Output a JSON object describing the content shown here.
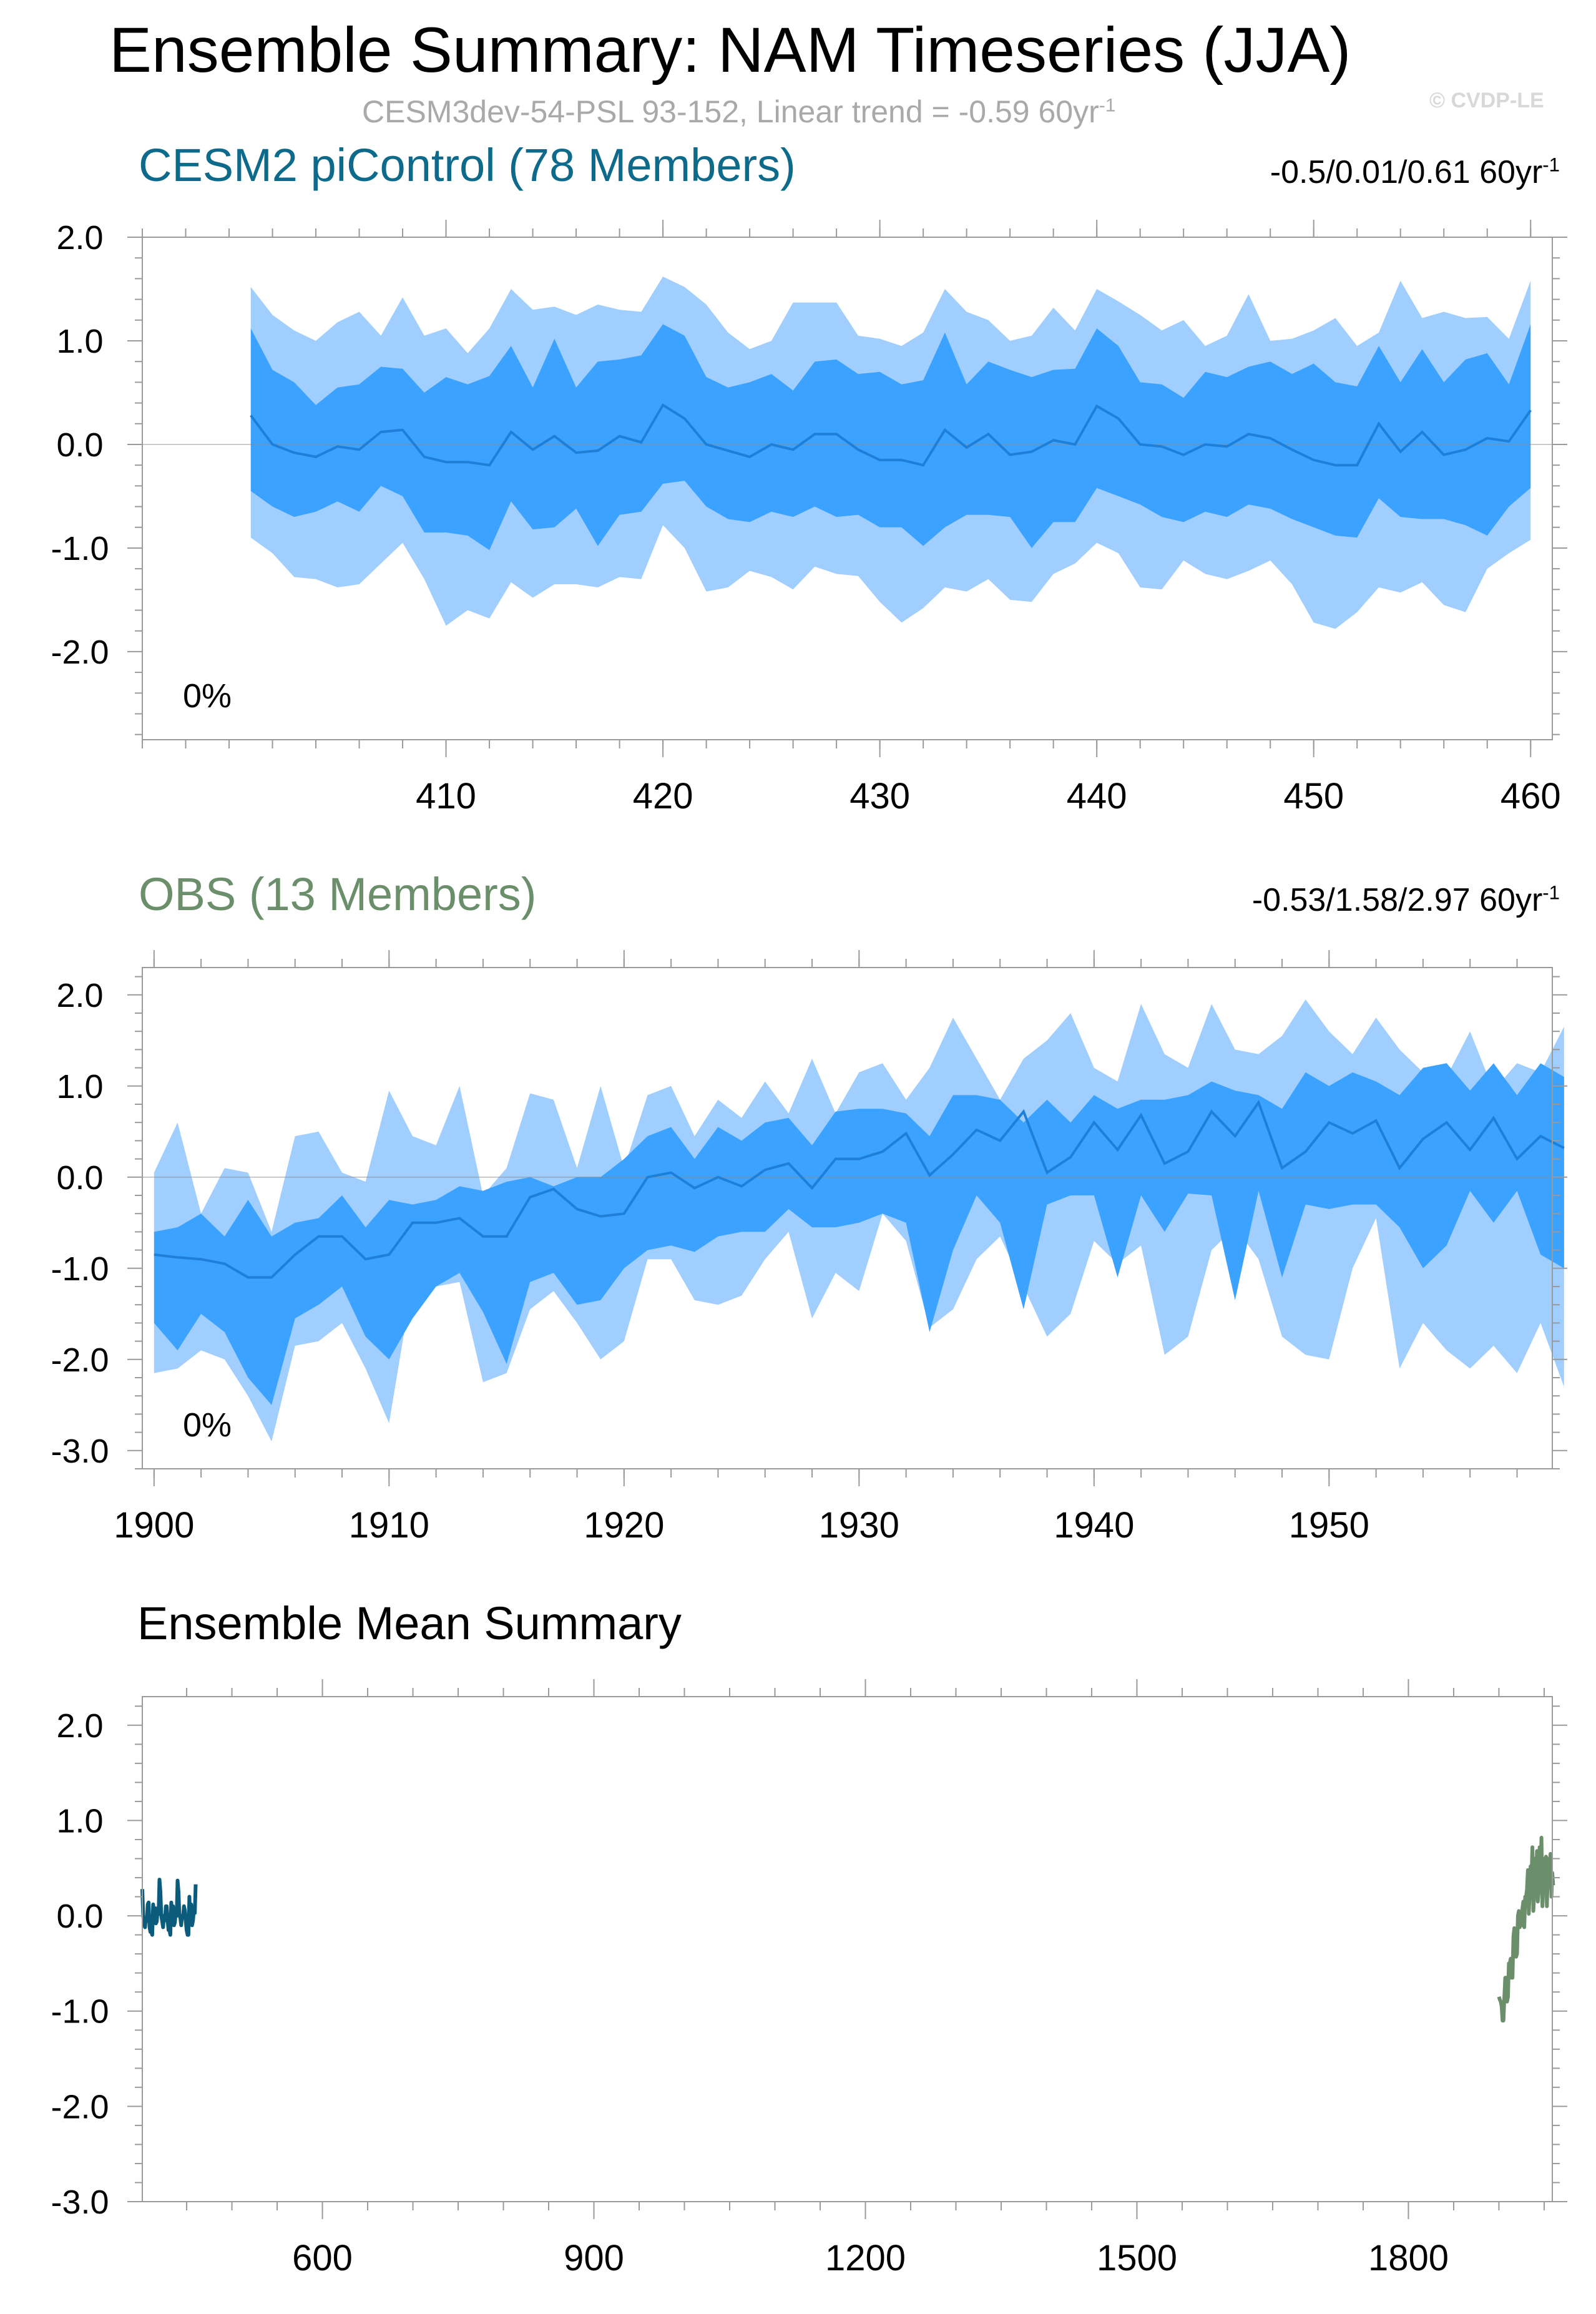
{
  "header": {
    "title": "Ensemble Summary: NAM Timeseries (JJA)",
    "subtitle": "CESM3dev-54-PSL 93-152, Linear trend = -0.59 60yr",
    "subtitle_sup": "-1",
    "watermark": "© CVDP-LE"
  },
  "colors": {
    "light_band": "#9fceff",
    "dark_band": "#3ba2ff",
    "mean_line": "#1d7fd8",
    "cesm_line": "#0b5c7c",
    "obs_line": "#6b8e6b",
    "cesm_title": "#0e6a8a",
    "obs_title": "#6b8e6b"
  },
  "chart_data": [
    {
      "type": "area",
      "title": "CESM2 piControl (78 Members)",
      "trend_label": "-0.5/0.01/0.61 60yr",
      "trend_sup": "-1",
      "annotation": "0%",
      "x_start": 401,
      "xlim": [
        396,
        461
      ],
      "ylim": [
        -2.85,
        2.0
      ],
      "yticks": [
        "2.0",
        "1.0",
        "0.0",
        "-1.0",
        "-2.0"
      ],
      "ytick_values": [
        2.0,
        1.0,
        0.0,
        -1.0,
        -2.0
      ],
      "xticks": [
        "410",
        "420",
        "430",
        "440",
        "450",
        "460"
      ],
      "xtick_values": [
        410,
        420,
        430,
        440,
        450,
        460
      ],
      "series": [
        {
          "name": "mean",
          "values": [
            0.28,
            0.0,
            -0.08,
            -0.12,
            -0.02,
            -0.05,
            0.12,
            0.14,
            -0.12,
            -0.17,
            -0.17,
            -0.2,
            0.12,
            -0.05,
            0.08,
            -0.08,
            -0.06,
            0.08,
            0.02,
            0.38,
            0.25,
            0.0,
            -0.06,
            -0.12,
            0.0,
            -0.05,
            0.1,
            0.1,
            -0.05,
            -0.15,
            -0.15,
            -0.2,
            0.14,
            -0.03,
            0.1,
            -0.1,
            -0.07,
            0.04,
            0.0,
            0.37,
            0.25,
            0.0,
            -0.02,
            -0.1,
            0.0,
            -0.02,
            0.1,
            0.06,
            -0.05,
            -0.15,
            -0.2,
            -0.2,
            0.2,
            -0.07,
            0.12,
            -0.1,
            -0.05,
            0.06,
            0.03,
            0.33
          ]
        },
        {
          "name": "p25",
          "values": [
            -0.45,
            -0.6,
            -0.7,
            -0.65,
            -0.55,
            -0.65,
            -0.4,
            -0.5,
            -0.85,
            -0.85,
            -0.88,
            -1.02,
            -0.55,
            -0.82,
            -0.8,
            -0.62,
            -0.98,
            -0.68,
            -0.65,
            -0.38,
            -0.35,
            -0.6,
            -0.72,
            -0.75,
            -0.65,
            -0.7,
            -0.6,
            -0.7,
            -0.68,
            -0.8,
            -0.8,
            -0.98,
            -0.8,
            -0.68,
            -0.68,
            -0.7,
            -1.0,
            -0.75,
            -0.75,
            -0.42,
            -0.5,
            -0.58,
            -0.7,
            -0.75,
            -0.65,
            -0.7,
            -0.58,
            -0.62,
            -0.72,
            -0.8,
            -0.88,
            -0.9,
            -0.52,
            -0.7,
            -0.72,
            -0.72,
            -0.78,
            -0.88,
            -0.6,
            -0.42
          ]
        },
        {
          "name": "p75",
          "values": [
            1.12,
            0.72,
            0.6,
            0.38,
            0.55,
            0.58,
            0.75,
            0.73,
            0.5,
            0.65,
            0.58,
            0.66,
            0.95,
            0.55,
            1.02,
            0.55,
            0.8,
            0.82,
            0.86,
            1.16,
            1.05,
            0.65,
            0.55,
            0.6,
            0.68,
            0.52,
            0.8,
            0.82,
            0.68,
            0.7,
            0.58,
            0.62,
            1.08,
            0.58,
            0.8,
            0.72,
            0.65,
            0.72,
            0.73,
            1.12,
            0.95,
            0.6,
            0.58,
            0.45,
            0.7,
            0.65,
            0.75,
            0.8,
            0.68,
            0.78,
            0.6,
            0.56,
            0.95,
            0.6,
            0.92,
            0.6,
            0.82,
            0.88,
            0.58,
            1.16
          ]
        },
        {
          "name": "p05",
          "values": [
            -0.9,
            -1.05,
            -1.28,
            -1.3,
            -1.38,
            -1.35,
            -1.15,
            -0.95,
            -1.3,
            -1.75,
            -1.6,
            -1.68,
            -1.33,
            -1.48,
            -1.35,
            -1.35,
            -1.38,
            -1.28,
            -1.3,
            -0.78,
            -1.0,
            -1.42,
            -1.38,
            -1.22,
            -1.28,
            -1.4,
            -1.18,
            -1.25,
            -1.27,
            -1.52,
            -1.72,
            -1.58,
            -1.38,
            -1.42,
            -1.3,
            -1.5,
            -1.52,
            -1.25,
            -1.15,
            -0.95,
            -1.05,
            -1.38,
            -1.4,
            -1.12,
            -1.25,
            -1.3,
            -1.22,
            -1.12,
            -1.35,
            -1.72,
            -1.78,
            -1.62,
            -1.38,
            -1.43,
            -1.33,
            -1.55,
            -1.62,
            -1.2,
            -1.05,
            -0.92
          ]
        },
        {
          "name": "p95",
          "values": [
            1.52,
            1.25,
            1.1,
            1.0,
            1.18,
            1.28,
            1.05,
            1.42,
            1.05,
            1.12,
            0.88,
            1.12,
            1.5,
            1.3,
            1.33,
            1.25,
            1.35,
            1.3,
            1.28,
            1.62,
            1.52,
            1.35,
            1.08,
            0.92,
            1.0,
            1.37,
            1.37,
            1.37,
            1.05,
            1.02,
            0.95,
            1.08,
            1.5,
            1.28,
            1.2,
            1.0,
            1.05,
            1.32,
            1.1,
            1.5,
            1.38,
            1.25,
            1.1,
            1.2,
            0.95,
            1.05,
            1.45,
            1.0,
            1.02,
            1.1,
            1.22,
            0.95,
            1.08,
            1.58,
            1.22,
            1.28,
            1.22,
            1.23,
            1.02,
            1.58
          ]
        }
      ]
    },
    {
      "type": "area",
      "title": "OBS (13 Members)",
      "trend_label": "-0.53/1.58/2.97 60yr",
      "trend_sup": "-1",
      "annotation": "0%",
      "x_start": 1900,
      "xlim": [
        1899.5,
        1959.5
      ],
      "ylim": [
        -3.2,
        2.3
      ],
      "yticks": [
        "2.0",
        "1.0",
        "0.0",
        "-1.0",
        "-2.0",
        "-3.0"
      ],
      "ytick_values": [
        2.0,
        1.0,
        0.0,
        -1.0,
        -2.0,
        -3.0
      ],
      "xticks": [
        "1900",
        "1910",
        "1920",
        "1930",
        "1940",
        "1950"
      ],
      "xtick_values": [
        1900,
        1910,
        1920,
        1930,
        1940,
        1950
      ],
      "series": [
        {
          "name": "mean",
          "values": [
            -0.85,
            -0.88,
            -0.9,
            -0.95,
            -1.1,
            -1.1,
            -0.85,
            -0.65,
            -0.65,
            -0.9,
            -0.85,
            -0.5,
            -0.5,
            -0.45,
            -0.65,
            -0.65,
            -0.22,
            -0.13,
            -0.35,
            -0.43,
            -0.4,
            0.0,
            0.05,
            -0.12,
            0.0,
            -0.1,
            0.08,
            0.15,
            -0.12,
            0.2,
            0.2,
            0.28,
            0.48,
            0.02,
            0.25,
            0.52,
            0.4,
            0.72,
            0.05,
            0.22,
            0.6,
            0.3,
            0.68,
            0.15,
            0.28,
            0.72,
            0.45,
            0.82,
            0.1,
            0.28,
            0.6,
            0.48,
            0.62,
            0.1,
            0.42,
            0.6,
            0.3,
            0.65,
            0.2,
            0.45,
            0.32
          ]
        },
        {
          "name": "p25",
          "values": [
            -1.6,
            -1.9,
            -1.5,
            -1.7,
            -2.2,
            -2.5,
            -1.55,
            -1.4,
            -1.2,
            -1.75,
            -2.0,
            -1.55,
            -1.2,
            -1.05,
            -1.48,
            -2.05,
            -1.15,
            -1.05,
            -1.4,
            -1.35,
            -1.0,
            -0.8,
            -0.75,
            -0.82,
            -0.65,
            -0.6,
            -0.6,
            -0.35,
            -0.55,
            -0.55,
            -0.5,
            -0.4,
            -0.5,
            -1.7,
            -0.8,
            -0.2,
            -0.5,
            -1.45,
            -0.3,
            -0.2,
            -0.2,
            -1.1,
            -0.2,
            -0.6,
            -0.18,
            -0.2,
            -1.35,
            -0.15,
            -1.1,
            -0.3,
            -0.35,
            -0.3,
            -0.3,
            -0.55,
            -1.0,
            -0.75,
            -0.15,
            -0.5,
            -0.15,
            -0.85,
            -1.0
          ]
        },
        {
          "name": "p75",
          "values": [
            -0.6,
            -0.55,
            -0.4,
            -0.65,
            -0.25,
            -0.65,
            -0.5,
            -0.45,
            -0.2,
            -0.55,
            -0.25,
            -0.3,
            -0.25,
            -0.1,
            -0.15,
            -0.05,
            0.0,
            -0.1,
            0.0,
            0.0,
            0.2,
            0.45,
            0.55,
            0.2,
            0.55,
            0.4,
            0.6,
            0.65,
            0.35,
            0.72,
            0.75,
            0.75,
            0.7,
            0.45,
            0.9,
            0.9,
            0.85,
            0.6,
            0.85,
            0.6,
            0.9,
            0.75,
            0.85,
            0.85,
            0.9,
            1.05,
            0.95,
            0.9,
            0.75,
            1.15,
            1.0,
            1.15,
            1.05,
            0.9,
            1.2,
            1.25,
            0.95,
            1.25,
            0.9,
            1.25,
            1.1
          ]
        },
        {
          "name": "p05",
          "values": [
            -2.15,
            -2.1,
            -1.9,
            -2.0,
            -2.4,
            -2.9,
            -1.85,
            -1.8,
            -1.6,
            -2.1,
            -2.7,
            -1.15,
            -1.2,
            -1.15,
            -2.25,
            -2.15,
            -1.45,
            -1.25,
            -1.6,
            -2.0,
            -1.8,
            -0.9,
            -0.9,
            -1.35,
            -1.4,
            -1.3,
            -0.9,
            -0.6,
            -1.55,
            -1.05,
            -1.25,
            -0.4,
            -0.7,
            -1.65,
            -1.45,
            -0.9,
            -0.65,
            -1.2,
            -1.75,
            -1.5,
            -0.7,
            -0.95,
            -0.75,
            -1.95,
            -1.75,
            -0.8,
            -0.55,
            -0.9,
            -1.75,
            -1.95,
            -2.0,
            -1.0,
            -0.45,
            -2.1,
            -1.6,
            -1.9,
            -2.1,
            -1.85,
            -2.15,
            -1.6,
            -2.3
          ]
        },
        {
          "name": "p95",
          "values": [
            0.05,
            0.6,
            -0.4,
            0.1,
            0.05,
            -0.6,
            0.45,
            0.5,
            0.05,
            -0.05,
            0.95,
            0.45,
            0.35,
            1.0,
            -0.2,
            0.1,
            0.92,
            0.85,
            0.1,
            1.0,
            0.1,
            0.9,
            1.0,
            0.45,
            0.85,
            0.65,
            1.05,
            0.7,
            1.3,
            0.7,
            1.15,
            1.25,
            0.85,
            1.2,
            1.75,
            1.3,
            0.85,
            1.3,
            1.5,
            1.8,
            1.2,
            1.05,
            1.9,
            1.35,
            1.2,
            1.9,
            1.4,
            1.35,
            1.55,
            1.95,
            1.6,
            1.35,
            1.75,
            1.4,
            1.15,
            1.1,
            1.6,
            0.95,
            1.25,
            1.15,
            1.65
          ]
        }
      ]
    },
    {
      "type": "line",
      "title": "Ensemble Mean Summary",
      "xlim": [
        401,
        1959
      ],
      "ylim": [
        -3.0,
        2.3
      ],
      "yticks": [
        "2.0",
        "1.0",
        "0.0",
        "-1.0",
        "-2.0",
        "-3.0"
      ],
      "ytick_values": [
        2.0,
        1.0,
        0.0,
        -1.0,
        -2.0,
        -3.0
      ],
      "xticks": [
        "600",
        "900",
        "1200",
        "1500",
        "1800"
      ],
      "xtick_values": [
        600,
        900,
        1200,
        1500,
        1800
      ],
      "series": [
        {
          "name": "CESM2 piControl",
          "x_start": 401,
          "ref": "chart_data.0.mean"
        },
        {
          "name": "OBS",
          "x_start": 1900,
          "ref": "chart_data.1.mean"
        }
      ]
    }
  ]
}
